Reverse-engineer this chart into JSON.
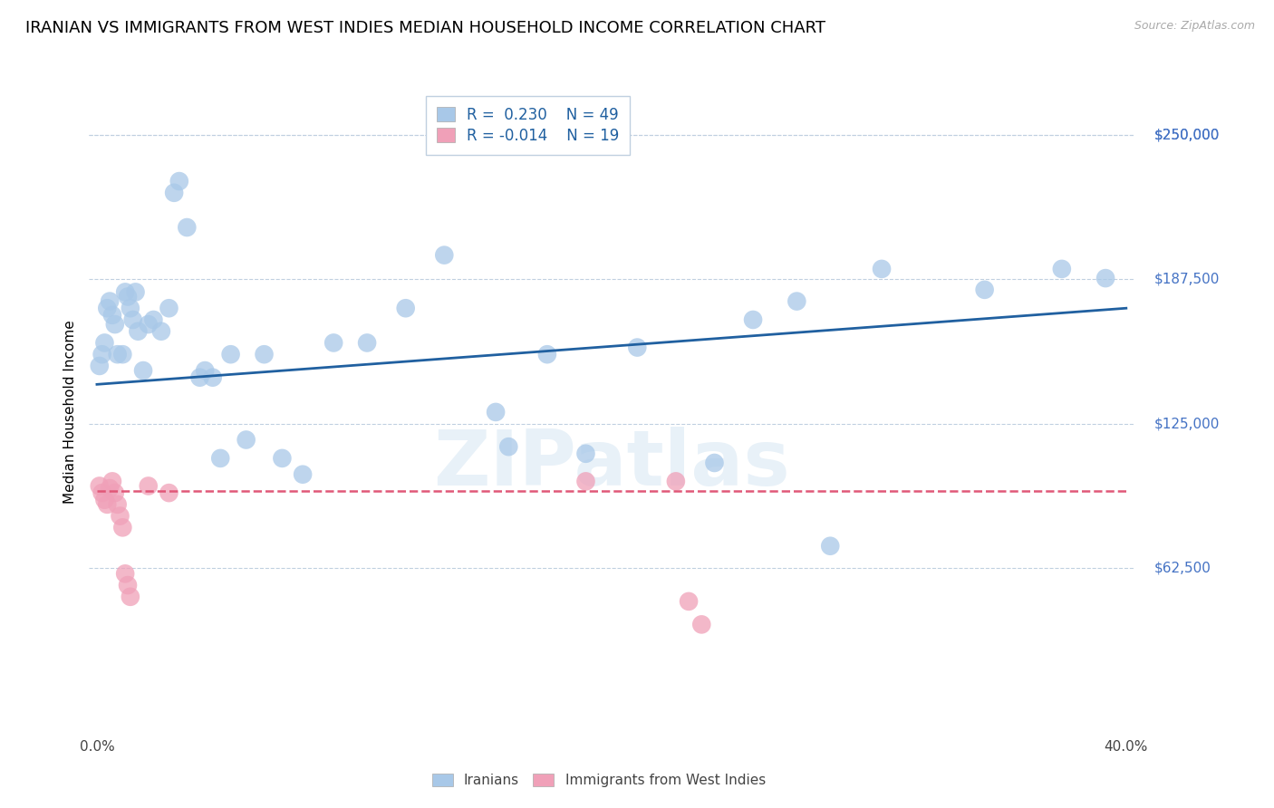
{
  "title": "IRANIAN VS IMMIGRANTS FROM WEST INDIES MEDIAN HOUSEHOLD INCOME CORRELATION CHART",
  "source": "Source: ZipAtlas.com",
  "ylabel": "Median Household Income",
  "ylim": [
    -10000,
    270000
  ],
  "xlim": [
    -0.003,
    0.403
  ],
  "watermark": "ZIPatlas",
  "iranians": {
    "color": "#a8c8e8",
    "line_color": "#2060a0",
    "R": 0.23,
    "N": 49,
    "label": "Iranians",
    "x": [
      0.001,
      0.002,
      0.003,
      0.004,
      0.005,
      0.006,
      0.007,
      0.008,
      0.01,
      0.011,
      0.012,
      0.013,
      0.014,
      0.015,
      0.016,
      0.018,
      0.02,
      0.022,
      0.025,
      0.028,
      0.03,
      0.032,
      0.035,
      0.04,
      0.042,
      0.045,
      0.048,
      0.052,
      0.058,
      0.065,
      0.072,
      0.08,
      0.092,
      0.105,
      0.12,
      0.135,
      0.155,
      0.175,
      0.21,
      0.255,
      0.272,
      0.305,
      0.345,
      0.375,
      0.392,
      0.16,
      0.19,
      0.24,
      0.285
    ],
    "y": [
      150000,
      155000,
      160000,
      175000,
      178000,
      172000,
      168000,
      155000,
      155000,
      182000,
      180000,
      175000,
      170000,
      182000,
      165000,
      148000,
      168000,
      170000,
      165000,
      175000,
      225000,
      230000,
      210000,
      145000,
      148000,
      145000,
      110000,
      155000,
      118000,
      155000,
      110000,
      103000,
      160000,
      160000,
      175000,
      198000,
      130000,
      155000,
      158000,
      170000,
      178000,
      192000,
      183000,
      192000,
      188000,
      115000,
      112000,
      108000,
      72000
    ]
  },
  "west_indies": {
    "color": "#f0a0b8",
    "line_color": "#e05878",
    "R": -0.014,
    "N": 19,
    "label": "Immigrants from West Indies",
    "x": [
      0.001,
      0.002,
      0.003,
      0.004,
      0.005,
      0.006,
      0.007,
      0.008,
      0.009,
      0.01,
      0.011,
      0.012,
      0.013,
      0.02,
      0.028,
      0.19,
      0.225,
      0.23,
      0.235
    ],
    "y": [
      98000,
      95000,
      92000,
      90000,
      97000,
      100000,
      95000,
      90000,
      85000,
      80000,
      60000,
      55000,
      50000,
      98000,
      95000,
      100000,
      100000,
      48000,
      38000
    ]
  },
  "background_color": "#ffffff",
  "grid_color": "#c0d0e0",
  "title_fontsize": 13,
  "axis_label_fontsize": 11,
  "tick_fontsize": 11,
  "legend_fontsize": 12,
  "ytick_positions": [
    62500,
    125000,
    187500,
    250000
  ],
  "ytick_labels": [
    "$62,500",
    "$125,000",
    "$187,500",
    "$250,000"
  ]
}
